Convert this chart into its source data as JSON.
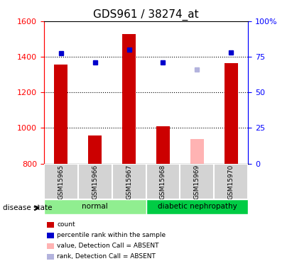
{
  "title": "GDS961 / 38274_at",
  "samples": [
    "GSM15965",
    "GSM15966",
    "GSM15967",
    "GSM15968",
    "GSM15969",
    "GSM15970"
  ],
  "bar_bottom": 800,
  "bar_tops": [
    1355,
    960,
    1530,
    1010,
    940,
    1365
  ],
  "bar_colors": [
    "#cc0000",
    "#cc0000",
    "#cc0000",
    "#cc0000",
    "#ffb3b3",
    "#cc0000"
  ],
  "percentile_values": [
    1420,
    1370,
    1440,
    1370,
    1330,
    1425
  ],
  "percentile_colors": [
    "#0000cc",
    "#0000cc",
    "#0000cc",
    "#0000cc",
    "#b3b3dd",
    "#0000cc"
  ],
  "ylim_left": [
    800,
    1600
  ],
  "ylim_right": [
    0,
    100
  ],
  "yticks_left": [
    800,
    1000,
    1200,
    1400,
    1600
  ],
  "yticks_right": [
    0,
    25,
    50,
    75,
    100
  ],
  "ytick_labels_right": [
    "0",
    "25",
    "50",
    "75",
    "100%"
  ],
  "grid_values": [
    1000,
    1200,
    1400
  ],
  "disease_groups": [
    {
      "label": "normal",
      "samples": [
        0,
        1,
        2
      ],
      "color": "#90ee90"
    },
    {
      "label": "diabetic nephropathy",
      "samples": [
        3,
        4,
        5
      ],
      "color": "#00cc44"
    }
  ],
  "legend_items": [
    {
      "label": "count",
      "color": "#cc0000"
    },
    {
      "label": "percentile rank within the sample",
      "color": "#0000cc"
    },
    {
      "label": "value, Detection Call = ABSENT",
      "color": "#ffb3b3"
    },
    {
      "label": "rank, Detection Call = ABSENT",
      "color": "#b3b3dd"
    }
  ],
  "bar_width": 0.4,
  "title_fontsize": 11,
  "tick_fontsize": 8,
  "disease_state_label": "disease state"
}
